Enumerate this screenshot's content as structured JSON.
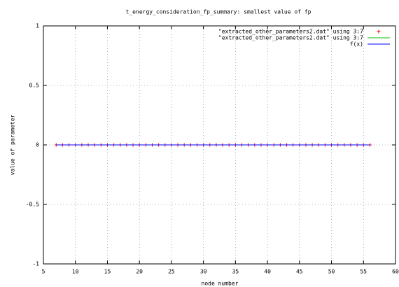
{
  "chart_data": {
    "type": "line",
    "title": "t_energy_consideration_fp_summary: smallest value of fp",
    "xlabel": "node number",
    "ylabel": "value of parameter",
    "x": [
      7,
      8,
      9,
      10,
      11,
      12,
      13,
      14,
      15,
      16,
      17,
      18,
      19,
      20,
      21,
      22,
      23,
      24,
      25,
      26,
      27,
      28,
      29,
      30,
      31,
      32,
      33,
      34,
      35,
      36,
      37,
      38,
      39,
      40,
      41,
      42,
      43,
      44,
      45,
      46,
      47,
      48,
      49,
      50,
      51,
      52,
      53,
      54,
      55,
      56
    ],
    "series": [
      {
        "name": "\"extracted_other_parameters2.dat\" using 3:7",
        "color": "#ff0000",
        "style": "points",
        "values": [
          0,
          0,
          0,
          0,
          0,
          0,
          0,
          0,
          0,
          0,
          0,
          0,
          0,
          0,
          0,
          0,
          0,
          0,
          0,
          0,
          0,
          0,
          0,
          0,
          0,
          0,
          0,
          0,
          0,
          0,
          0,
          0,
          0,
          0,
          0,
          0,
          0,
          0,
          0,
          0,
          0,
          0,
          0,
          0,
          0,
          0,
          0,
          0,
          0,
          0
        ]
      },
      {
        "name": "\"extracted_other_parameters2.dat\" using 3:7",
        "color": "#00c000",
        "style": "lines",
        "values": [
          0,
          0,
          0,
          0,
          0,
          0,
          0,
          0,
          0,
          0,
          0,
          0,
          0,
          0,
          0,
          0,
          0,
          0,
          0,
          0,
          0,
          0,
          0,
          0,
          0,
          0,
          0,
          0,
          0,
          0,
          0,
          0,
          0,
          0,
          0,
          0,
          0,
          0,
          0,
          0,
          0,
          0,
          0,
          0,
          0,
          0,
          0,
          0,
          0,
          0
        ]
      },
      {
        "name": "f(x)",
        "color": "#0000ff",
        "style": "lines",
        "values": [
          0,
          0,
          0,
          0,
          0,
          0,
          0,
          0,
          0,
          0,
          0,
          0,
          0,
          0,
          0,
          0,
          0,
          0,
          0,
          0,
          0,
          0,
          0,
          0,
          0,
          0,
          0,
          0,
          0,
          0,
          0,
          0,
          0,
          0,
          0,
          0,
          0,
          0,
          0,
          0,
          0,
          0,
          0,
          0,
          0,
          0,
          0,
          0,
          0,
          0
        ]
      }
    ],
    "xlim": [
      5,
      60
    ],
    "xticks": [
      5,
      10,
      15,
      20,
      25,
      30,
      35,
      40,
      45,
      50,
      55,
      60
    ],
    "ylim": [
      -1,
      1
    ],
    "yticks": [
      -1,
      -0.5,
      0,
      0.5,
      1
    ],
    "grid": true,
    "legend": "top-right"
  }
}
